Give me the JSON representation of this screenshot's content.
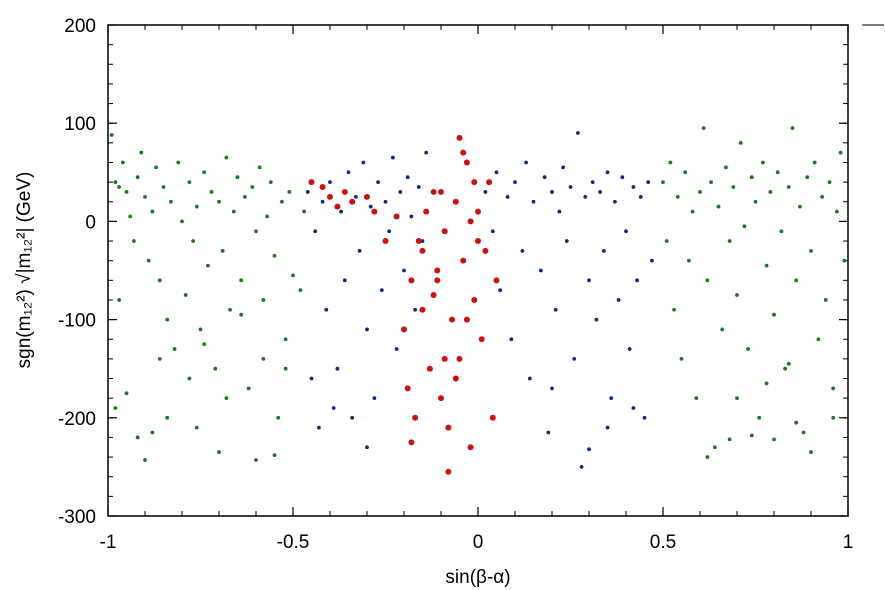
{
  "chart_data": {
    "type": "scatter",
    "title": "",
    "xlabel": "sin(β-α)",
    "ylabel": "sgn(m₁₂²) √|m₁₂²|  (GeV)",
    "xlim": [
      -1,
      1
    ],
    "ylim": [
      -300,
      200
    ],
    "x_ticks": [
      "-1",
      "-0.5",
      "0",
      "0.5",
      "1"
    ],
    "y_ticks": [
      "200",
      "100",
      "0",
      "-100",
      "-200",
      "-300"
    ],
    "grid": false,
    "legend": "none",
    "series": [
      {
        "color": "#1a7a1a",
        "marker_size": "small",
        "points": [
          [
            -0.99,
            88
          ],
          [
            -0.98,
            40
          ],
          [
            -0.97,
            35
          ],
          [
            -0.96,
            60
          ],
          [
            -0.95,
            30
          ],
          [
            -0.94,
            5
          ],
          [
            -0.93,
            -20
          ],
          [
            -0.92,
            45
          ],
          [
            -0.91,
            70
          ],
          [
            -0.9,
            25
          ],
          [
            -0.89,
            -40
          ],
          [
            -0.88,
            10
          ],
          [
            -0.87,
            55
          ],
          [
            -0.86,
            -60
          ],
          [
            -0.85,
            35
          ],
          [
            -0.84,
            -100
          ],
          [
            -0.83,
            20
          ],
          [
            -0.82,
            -130
          ],
          [
            -0.81,
            60
          ],
          [
            -0.8,
            0
          ],
          [
            -0.79,
            -75
          ],
          [
            -0.78,
            40
          ],
          [
            -0.77,
            -20
          ],
          [
            -0.76,
            15
          ],
          [
            -0.75,
            -110
          ],
          [
            -0.74,
            50
          ],
          [
            -0.73,
            -45
          ],
          [
            -0.72,
            30
          ],
          [
            -0.71,
            -150
          ],
          [
            -0.7,
            20
          ],
          [
            -0.69,
            -30
          ],
          [
            -0.68,
            65
          ],
          [
            -0.67,
            -90
          ],
          [
            -0.66,
            10
          ],
          [
            -0.65,
            45
          ],
          [
            -0.64,
            -60
          ],
          [
            -0.63,
            25
          ],
          [
            -0.62,
            -170
          ],
          [
            -0.61,
            35
          ],
          [
            -0.6,
            -10
          ],
          [
            -0.59,
            55
          ],
          [
            -0.58,
            -80
          ],
          [
            -0.57,
            5
          ],
          [
            -0.56,
            40
          ],
          [
            -0.55,
            -35
          ],
          [
            -0.54,
            -200
          ],
          [
            -0.53,
            20
          ],
          [
            -0.52,
            -120
          ],
          [
            -0.51,
            30
          ],
          [
            -0.5,
            -55
          ],
          [
            -0.92,
            -220
          ],
          [
            -0.88,
            -215
          ],
          [
            -0.95,
            -175
          ],
          [
            -0.98,
            -190
          ],
          [
            -0.9,
            -243
          ],
          [
            -0.7,
            -235
          ],
          [
            -0.6,
            -243
          ],
          [
            -0.55,
            -238
          ],
          [
            -0.76,
            -210
          ],
          [
            -0.84,
            -200
          ],
          [
            -0.97,
            -80
          ],
          [
            -0.86,
            -140
          ],
          [
            -0.78,
            -160
          ],
          [
            -0.74,
            -125
          ],
          [
            -0.68,
            -180
          ],
          [
            -0.64,
            -95
          ],
          [
            -0.58,
            -140
          ],
          [
            -0.52,
            -150
          ],
          [
            -0.48,
            -70
          ],
          [
            -0.47,
            10
          ],
          [
            0.5,
            40
          ],
          [
            0.51,
            -20
          ],
          [
            0.52,
            60
          ],
          [
            0.53,
            -90
          ],
          [
            0.54,
            25
          ],
          [
            0.55,
            -140
          ],
          [
            0.56,
            50
          ],
          [
            0.57,
            -40
          ],
          [
            0.58,
            10
          ],
          [
            0.59,
            -180
          ],
          [
            0.6,
            30
          ],
          [
            0.61,
            95
          ],
          [
            0.62,
            -60
          ],
          [
            0.63,
            40
          ],
          [
            0.64,
            -230
          ],
          [
            0.65,
            15
          ],
          [
            0.66,
            -110
          ],
          [
            0.67,
            55
          ],
          [
            0.68,
            -20
          ],
          [
            0.69,
            35
          ],
          [
            0.7,
            -75
          ],
          [
            0.71,
            80
          ],
          [
            0.72,
            -5
          ],
          [
            0.73,
            -130
          ],
          [
            0.74,
            45
          ],
          [
            0.75,
            20
          ],
          [
            0.76,
            -200
          ],
          [
            0.77,
            60
          ],
          [
            0.78,
            -45
          ],
          [
            0.79,
            30
          ],
          [
            0.8,
            -95
          ],
          [
            0.81,
            50
          ],
          [
            0.82,
            -10
          ],
          [
            0.83,
            -150
          ],
          [
            0.84,
            35
          ],
          [
            0.85,
            95
          ],
          [
            0.86,
            -60
          ],
          [
            0.87,
            15
          ],
          [
            0.88,
            -215
          ],
          [
            0.89,
            45
          ],
          [
            0.9,
            -30
          ],
          [
            0.91,
            60
          ],
          [
            0.92,
            -120
          ],
          [
            0.93,
            25
          ],
          [
            0.94,
            -80
          ],
          [
            0.95,
            40
          ],
          [
            0.96,
            -170
          ],
          [
            0.97,
            10
          ],
          [
            0.98,
            70
          ],
          [
            0.99,
            -40
          ],
          [
            0.62,
            -240
          ],
          [
            0.68,
            -222
          ],
          [
            0.74,
            -218
          ],
          [
            0.8,
            -222
          ],
          [
            0.86,
            -205
          ],
          [
            0.9,
            -235
          ],
          [
            0.96,
            -200
          ],
          [
            0.7,
            -180
          ],
          [
            0.78,
            -165
          ],
          [
            0.84,
            -145
          ]
        ]
      },
      {
        "color": "#102a7a",
        "marker_size": "small",
        "points": [
          [
            -0.46,
            30
          ],
          [
            -0.44,
            -10
          ],
          [
            -0.42,
            20
          ],
          [
            -0.41,
            -90
          ],
          [
            -0.4,
            40
          ],
          [
            -0.38,
            -150
          ],
          [
            -0.37,
            10
          ],
          [
            -0.36,
            -60
          ],
          [
            -0.35,
            50
          ],
          [
            -0.34,
            -200
          ],
          [
            -0.33,
            25
          ],
          [
            -0.32,
            -30
          ],
          [
            -0.31,
            60
          ],
          [
            -0.3,
            -110
          ],
          [
            -0.29,
            15
          ],
          [
            -0.28,
            -180
          ],
          [
            -0.27,
            40
          ],
          [
            -0.26,
            -70
          ],
          [
            -0.25,
            20
          ],
          [
            -0.24,
            -10
          ],
          [
            -0.23,
            65
          ],
          [
            -0.22,
            -130
          ],
          [
            -0.21,
            30
          ],
          [
            -0.2,
            -50
          ],
          [
            -0.19,
            45
          ],
          [
            -0.18,
            5
          ],
          [
            -0.17,
            -90
          ],
          [
            -0.16,
            35
          ],
          [
            -0.15,
            -20
          ],
          [
            -0.14,
            70
          ],
          [
            0.02,
            30
          ],
          [
            0.04,
            -10
          ],
          [
            0.05,
            50
          ],
          [
            0.06,
            -70
          ],
          [
            0.08,
            25
          ],
          [
            0.09,
            -120
          ],
          [
            0.1,
            40
          ],
          [
            0.12,
            -30
          ],
          [
            0.13,
            60
          ],
          [
            0.14,
            -160
          ],
          [
            0.15,
            20
          ],
          [
            0.17,
            -50
          ],
          [
            0.18,
            45
          ],
          [
            0.19,
            -215
          ],
          [
            0.2,
            30
          ],
          [
            0.21,
            -90
          ],
          [
            0.22,
            10
          ],
          [
            0.23,
            55
          ],
          [
            0.24,
            -20
          ],
          [
            0.25,
            35
          ],
          [
            0.26,
            -140
          ],
          [
            0.27,
            90
          ],
          [
            0.28,
            -250
          ],
          [
            0.29,
            25
          ],
          [
            0.3,
            -60
          ],
          [
            0.31,
            40
          ],
          [
            0.32,
            -100
          ],
          [
            0.33,
            30
          ],
          [
            0.34,
            -30
          ],
          [
            0.35,
            50
          ],
          [
            0.36,
            -180
          ],
          [
            0.37,
            20
          ],
          [
            0.38,
            -80
          ],
          [
            0.39,
            45
          ],
          [
            0.4,
            -10
          ],
          [
            0.41,
            -130
          ],
          [
            0.42,
            35
          ],
          [
            0.43,
            -60
          ],
          [
            0.44,
            25
          ],
          [
            0.45,
            -200
          ],
          [
            0.46,
            40
          ],
          [
            0.47,
            -40
          ],
          [
            -0.45,
            -160
          ],
          [
            -0.43,
            -210
          ],
          [
            -0.39,
            -190
          ],
          [
            -0.3,
            -230
          ],
          [
            0.3,
            -232
          ],
          [
            0.35,
            -210
          ],
          [
            0.42,
            -190
          ],
          [
            0.2,
            -170
          ]
        ]
      },
      {
        "color": "#cc1111",
        "marker_size": "large",
        "points": [
          [
            -0.45,
            40
          ],
          [
            -0.42,
            35
          ],
          [
            -0.4,
            25
          ],
          [
            -0.38,
            15
          ],
          [
            -0.36,
            30
          ],
          [
            -0.34,
            20
          ],
          [
            -0.3,
            25
          ],
          [
            -0.28,
            10
          ],
          [
            -0.25,
            -20
          ],
          [
            -0.22,
            5
          ],
          [
            -0.2,
            -110
          ],
          [
            -0.19,
            -170
          ],
          [
            -0.18,
            -60
          ],
          [
            -0.17,
            -200
          ],
          [
            -0.16,
            -20
          ],
          [
            -0.15,
            -90
          ],
          [
            -0.14,
            10
          ],
          [
            -0.13,
            -150
          ],
          [
            -0.12,
            30
          ],
          [
            -0.11,
            -60
          ],
          [
            -0.1,
            -180
          ],
          [
            -0.09,
            -10
          ],
          [
            -0.08,
            -210
          ],
          [
            -0.07,
            -100
          ],
          [
            -0.06,
            20
          ],
          [
            -0.05,
            -140
          ],
          [
            -0.04,
            -40
          ],
          [
            -0.03,
            60
          ],
          [
            -0.02,
            -230
          ],
          [
            -0.01,
            -80
          ],
          [
            0.0,
            10
          ],
          [
            0.01,
            -120
          ],
          [
            0.02,
            -30
          ],
          [
            0.03,
            40
          ],
          [
            0.04,
            -200
          ],
          [
            0.05,
            -60
          ],
          [
            -0.05,
            85
          ],
          [
            -0.08,
            -255
          ],
          [
            -0.1,
            30
          ],
          [
            -0.12,
            -75
          ],
          [
            -0.03,
            -100
          ],
          [
            -0.06,
            -160
          ],
          [
            -0.09,
            -140
          ],
          [
            -0.02,
            0
          ],
          [
            -0.01,
            40
          ],
          [
            0.0,
            -20
          ],
          [
            -0.04,
            70
          ],
          [
            -0.15,
            -30
          ],
          [
            -0.18,
            -225
          ],
          [
            -0.11,
            -50
          ]
        ]
      }
    ]
  }
}
